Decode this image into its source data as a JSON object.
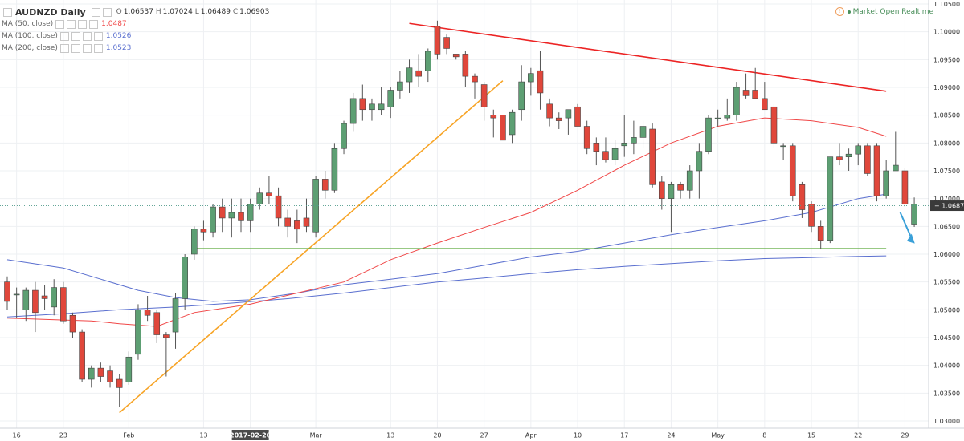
{
  "header": {
    "symbol": "AUDNZD Daily",
    "ohlc": {
      "o_label": "O",
      "o": "1.06537",
      "h_label": "H",
      "h": "1.07024",
      "l_label": "L",
      "l": "1.06489",
      "c_label": "C",
      "c": "1.06903"
    },
    "indicators": [
      {
        "label": "MA (50, close)",
        "value": "1.0487",
        "color": "#f04848"
      },
      {
        "label": "MA (100, close)",
        "value": "1.0526",
        "color": "#5a6fcf"
      },
      {
        "label": "MA (200, close)",
        "value": "1.0523",
        "color": "#5a6fcf"
      }
    ]
  },
  "status": {
    "info_glyph": "!",
    "text": "Market Open Realtime"
  },
  "last_price_label": "1.06872",
  "colors": {
    "up": "#5d9f73",
    "down": "#e0473b",
    "wick": "#555555",
    "grid": "#eef0f3",
    "ma50": "#f04848",
    "ma100": "#5a6fcf",
    "ma200": "#5a6fcf",
    "trend_down": "#ec2424",
    "trend_up": "#f7a426",
    "support": "#5ba93b",
    "arrow": "#3aa0d8"
  },
  "chart_data": {
    "type": "candlestick",
    "y_axis_ticks": [
      "1.10500",
      "1.10000",
      "1.09500",
      "1.09000",
      "1.08500",
      "1.08000",
      "1.07500",
      "1.07000",
      "1.06500",
      "1.06000",
      "1.05500",
      "1.05000",
      "1.04500",
      "1.04000",
      "1.03500",
      "1.03000"
    ],
    "y_axis_values": [
      1.105,
      1.1,
      1.095,
      1.09,
      1.085,
      1.08,
      1.075,
      1.07,
      1.065,
      1.06,
      1.055,
      1.05,
      1.045,
      1.04,
      1.035,
      1.03
    ],
    "ylim": [
      1.0295,
      1.1055
    ],
    "x_axis_labels": [
      {
        "text": "16",
        "index": 1
      },
      {
        "text": "23",
        "index": 6
      },
      {
        "text": "Feb",
        "index": 13
      },
      {
        "text": "13",
        "index": 21
      },
      {
        "text": "2017-02-20",
        "index": 26,
        "highlight": true
      },
      {
        "text": "Mar",
        "index": 33
      },
      {
        "text": "13",
        "index": 41
      },
      {
        "text": "20",
        "index": 46
      },
      {
        "text": "27",
        "index": 51
      },
      {
        "text": "Apr",
        "index": 56
      },
      {
        "text": "10",
        "index": 61
      },
      {
        "text": "17",
        "index": 66
      },
      {
        "text": "24",
        "index": 71
      },
      {
        "text": "May",
        "index": 76
      },
      {
        "text": "8",
        "index": 81
      },
      {
        "text": "15",
        "index": 86
      },
      {
        "text": "22",
        "index": 91
      },
      {
        "text": "29",
        "index": 96
      }
    ],
    "candles": [
      [
        1.055,
        1.056,
        1.05,
        1.0515
      ],
      [
        1.0528,
        1.054,
        1.0485,
        1.0528
      ],
      [
        1.05,
        1.054,
        1.048,
        1.0535
      ],
      [
        1.0535,
        1.055,
        1.046,
        1.0495
      ],
      [
        1.0525,
        1.0545,
        1.05,
        1.052
      ],
      [
        1.0505,
        1.0555,
        1.049,
        1.054
      ],
      [
        1.054,
        1.055,
        1.0475,
        1.048
      ],
      [
        1.049,
        1.0495,
        1.045,
        1.046
      ],
      [
        1.046,
        1.0465,
        1.037,
        1.0375
      ],
      [
        1.0375,
        1.04,
        1.036,
        1.0395
      ],
      [
        1.0395,
        1.0405,
        1.037,
        1.038
      ],
      [
        1.039,
        1.04,
        1.036,
        1.037
      ],
      [
        1.0375,
        1.0385,
        1.0325,
        1.036
      ],
      [
        1.037,
        1.0425,
        1.0365,
        1.0415
      ],
      [
        1.042,
        1.051,
        1.041,
        1.05
      ],
      [
        1.05,
        1.0525,
        1.048,
        1.049
      ],
      [
        1.0495,
        1.05,
        1.044,
        1.0455
      ],
      [
        1.0455,
        1.046,
        1.038,
        1.045
      ],
      [
        1.046,
        1.053,
        1.043,
        1.052
      ],
      [
        1.052,
        1.06,
        1.05,
        1.0595
      ],
      [
        1.06,
        1.065,
        1.059,
        1.0645
      ],
      [
        1.0645,
        1.066,
        1.0625,
        1.064
      ],
      [
        1.064,
        1.069,
        1.063,
        1.0685
      ],
      [
        1.0685,
        1.07,
        1.064,
        1.0665
      ],
      [
        1.0665,
        1.07,
        1.063,
        1.0675
      ],
      [
        1.0675,
        1.07,
        1.064,
        1.066
      ],
      [
        1.066,
        1.07,
        1.064,
        1.069
      ],
      [
        1.069,
        1.072,
        1.068,
        1.071
      ],
      [
        1.071,
        1.074,
        1.069,
        1.0705
      ],
      [
        1.0705,
        1.072,
        1.065,
        1.0665
      ],
      [
        1.0665,
        1.068,
        1.063,
        1.065
      ],
      [
        1.066,
        1.068,
        1.062,
        1.0645
      ],
      [
        1.0665,
        1.07,
        1.064,
        1.065
      ],
      [
        1.064,
        1.074,
        1.063,
        1.0735
      ],
      [
        1.0735,
        1.075,
        1.07,
        1.0715
      ],
      [
        1.0715,
        1.08,
        1.071,
        1.079
      ],
      [
        1.079,
        1.084,
        1.078,
        1.0835
      ],
      [
        1.0835,
        1.089,
        1.082,
        1.088
      ],
      [
        1.088,
        1.0905,
        1.084,
        1.086
      ],
      [
        1.086,
        1.088,
        1.084,
        1.087
      ],
      [
        1.086,
        1.09,
        1.085,
        1.087
      ],
      [
        1.0865,
        1.09,
        1.0845,
        1.0895
      ],
      [
        1.0895,
        1.093,
        1.088,
        1.091
      ],
      [
        1.091,
        1.095,
        1.089,
        1.0935
      ],
      [
        1.093,
        1.096,
        1.09,
        1.092
      ],
      [
        1.093,
        1.097,
        1.091,
        1.0965
      ],
      [
        1.101,
        1.102,
        1.095,
        1.096
      ],
      [
        1.099,
        1.0995,
        1.096,
        1.097
      ],
      [
        1.096,
        1.096,
        1.095,
        1.0955
      ],
      [
        1.096,
        1.0965,
        1.09,
        1.092
      ],
      [
        1.092,
        1.0925,
        1.088,
        1.091
      ],
      [
        1.0905,
        1.091,
        1.084,
        1.0865
      ],
      [
        1.085,
        1.086,
        1.081,
        1.0845
      ],
      [
        1.085,
        1.085,
        1.0805,
        1.0805
      ],
      [
        1.0815,
        1.086,
        1.08,
        1.0855
      ],
      [
        1.086,
        1.094,
        1.084,
        1.091
      ],
      [
        1.091,
        1.0935,
        1.0885,
        1.0925
      ],
      [
        1.093,
        1.0965,
        1.086,
        1.089
      ],
      [
        1.087,
        1.088,
        1.083,
        1.0845
      ],
      [
        1.0845,
        1.0855,
        1.0825,
        1.084
      ],
      [
        1.0845,
        1.086,
        1.0815,
        1.086
      ],
      [
        1.0865,
        1.087,
        1.083,
        1.083
      ],
      [
        1.083,
        1.084,
        1.078,
        1.079
      ],
      [
        1.08,
        1.081,
        1.076,
        1.0785
      ],
      [
        1.0785,
        1.081,
        1.0765,
        1.077
      ],
      [
        1.077,
        1.0805,
        1.076,
        1.079
      ],
      [
        1.0795,
        1.085,
        1.0775,
        1.08
      ],
      [
        1.08,
        1.084,
        1.078,
        1.081
      ],
      [
        1.081,
        1.084,
        1.079,
        1.083
      ],
      [
        1.0825,
        1.0835,
        1.072,
        1.0725
      ],
      [
        1.073,
        1.074,
        1.068,
        1.07
      ],
      [
        1.07,
        1.073,
        1.064,
        1.0725
      ],
      [
        1.0725,
        1.073,
        1.07,
        1.0715
      ],
      [
        1.0715,
        1.076,
        1.07,
        1.075
      ],
      [
        1.075,
        1.08,
        1.07,
        1.0785
      ],
      [
        1.0785,
        1.085,
        1.078,
        1.0845
      ],
      [
        1.0845,
        1.086,
        1.083,
        1.0845
      ],
      [
        1.0845,
        1.088,
        1.084,
        1.085
      ],
      [
        1.085,
        1.091,
        1.084,
        1.09
      ],
      [
        1.0895,
        1.0925,
        1.088,
        1.0885
      ],
      [
        1.0895,
        1.0935,
        1.088,
        1.088
      ],
      [
        1.088,
        1.091,
        1.086,
        1.086
      ],
      [
        1.0865,
        1.087,
        1.079,
        1.08
      ],
      [
        1.0795,
        1.08,
        1.077,
        1.0795
      ],
      [
        1.0795,
        1.08,
        1.0695,
        1.0705
      ],
      [
        1.0725,
        1.073,
        1.0665,
        1.068
      ],
      [
        1.069,
        1.0695,
        1.064,
        1.065
      ],
      [
        1.065,
        1.066,
        1.061,
        1.0625
      ],
      [
        1.0625,
        1.0775,
        1.062,
        1.0775
      ],
      [
        1.0775,
        1.08,
        1.076,
        1.077
      ],
      [
        1.0775,
        1.079,
        1.075,
        1.078
      ],
      [
        1.078,
        1.08,
        1.076,
        1.0795
      ],
      [
        1.0795,
        1.08,
        1.074,
        1.0745
      ],
      [
        1.0795,
        1.08,
        1.0695,
        1.0705
      ],
      [
        1.0705,
        1.077,
        1.07,
        1.075
      ],
      [
        1.075,
        1.082,
        1.075,
        1.076
      ],
      [
        1.075,
        1.0755,
        1.0685,
        1.069
      ],
      [
        1.0654,
        1.0702,
        1.0649,
        1.069
      ]
    ],
    "ma50": [
      [
        0,
        1.0485
      ],
      [
        9,
        1.048
      ],
      [
        12,
        1.0475
      ],
      [
        16,
        1.047
      ],
      [
        20,
        1.0495
      ],
      [
        26,
        1.051
      ],
      [
        31,
        1.053
      ],
      [
        36,
        1.055
      ],
      [
        41,
        1.059
      ],
      [
        46,
        1.062
      ],
      [
        51,
        1.0648
      ],
      [
        56,
        1.0675
      ],
      [
        61,
        1.0715
      ],
      [
        66,
        1.076
      ],
      [
        71,
        1.08
      ],
      [
        76,
        1.083
      ],
      [
        81,
        1.0845
      ],
      [
        86,
        1.084
      ],
      [
        91,
        1.0828
      ],
      [
        94,
        1.0812
      ]
    ],
    "ma100": [
      [
        0,
        1.059
      ],
      [
        6,
        1.0575
      ],
      [
        10,
        1.0555
      ],
      [
        14,
        1.0535
      ],
      [
        18,
        1.0522
      ],
      [
        22,
        1.0515
      ],
      [
        26,
        1.0518
      ],
      [
        31,
        1.053
      ],
      [
        36,
        1.0545
      ],
      [
        41,
        1.0555
      ],
      [
        46,
        1.0565
      ],
      [
        51,
        1.058
      ],
      [
        56,
        1.0595
      ],
      [
        61,
        1.0605
      ],
      [
        66,
        1.062
      ],
      [
        71,
        1.0635
      ],
      [
        76,
        1.0648
      ],
      [
        81,
        1.066
      ],
      [
        86,
        1.0675
      ],
      [
        91,
        1.07
      ],
      [
        94,
        1.0708
      ]
    ],
    "ma200": [
      [
        0,
        1.0487
      ],
      [
        6,
        1.0493
      ],
      [
        12,
        1.05
      ],
      [
        18,
        1.0505
      ],
      [
        24,
        1.0512
      ],
      [
        30,
        1.052
      ],
      [
        36,
        1.053
      ],
      [
        41,
        1.054
      ],
      [
        46,
        1.055
      ],
      [
        51,
        1.0557
      ],
      [
        56,
        1.0565
      ],
      [
        61,
        1.0572
      ],
      [
        66,
        1.0578
      ],
      [
        71,
        1.0583
      ],
      [
        76,
        1.0588
      ],
      [
        81,
        1.0592
      ],
      [
        86,
        1.0594
      ],
      [
        91,
        1.0596
      ],
      [
        94,
        1.0597
      ]
    ],
    "trendlines": [
      {
        "name": "resistance",
        "from": [
          43,
          1.1015
        ],
        "to": [
          94,
          1.0893
        ],
        "color_key": "trend_down"
      },
      {
        "name": "rising-support",
        "from": [
          12,
          1.0315
        ],
        "to": [
          53,
          1.0912
        ],
        "color_key": "trend_up"
      },
      {
        "name": "horizontal-support",
        "from": [
          20,
          1.061
        ],
        "to": [
          94,
          1.061
        ],
        "color_key": "support"
      }
    ],
    "last_price": 1.06872
  }
}
